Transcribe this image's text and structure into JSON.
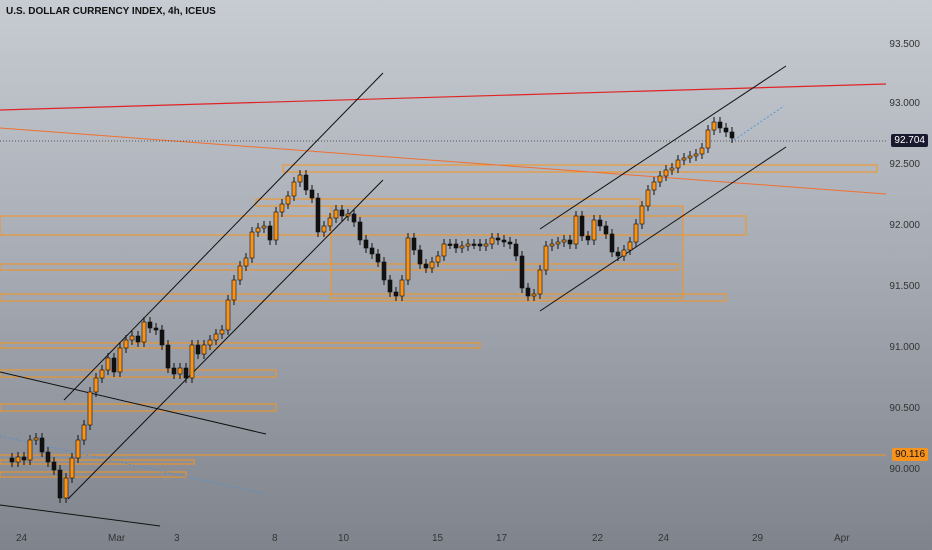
{
  "title": "U.S. DOLLAR CURRENCY INDEX, 4h, ICEUS",
  "price_axis": {
    "ticks": [
      "93.500",
      "93.000",
      "92.500",
      "92.000",
      "91.500",
      "91.000",
      "90.500",
      "90.000"
    ]
  },
  "time_axis": {
    "ticks": [
      "24",
      "Mar",
      "3",
      "8",
      "10",
      "15",
      "17",
      "22",
      "24",
      "29",
      "Apr"
    ]
  },
  "current_price": {
    "label": "92.704",
    "color": "#1a1a2e"
  },
  "level_price": {
    "label": "90.116",
    "color": "#f7931a"
  },
  "colors": {
    "candle_up": "#f7931a",
    "candle_down": "#111111",
    "zone_border": "#f7931a",
    "trendline_red": "#e02424",
    "channel": "#111111"
  }
}
